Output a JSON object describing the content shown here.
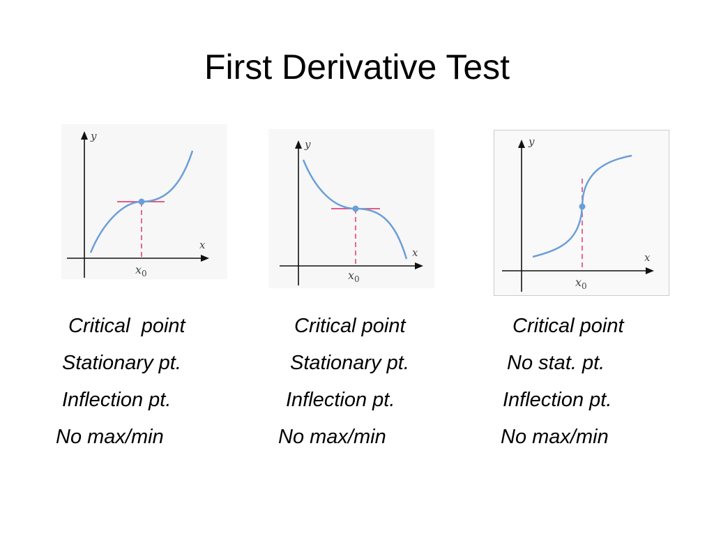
{
  "title": "First Derivative Test",
  "graphs": [
    {
      "axis_x": "x",
      "axis_y": "y",
      "x0_main": "x",
      "x0_sub": "0",
      "lines": [
        "Critical  point",
        "Stationary pt.",
        "Inflection pt.",
        "No max/min"
      ]
    },
    {
      "axis_x": "x",
      "axis_y": "y",
      "x0_main": "x",
      "x0_sub": "0",
      "lines": [
        "Critical point",
        "Stationary pt.",
        "Inflection pt.",
        "No max/min"
      ]
    },
    {
      "axis_x": "x",
      "axis_y": "y",
      "x0_main": "x",
      "x0_sub": "0",
      "lines": [
        "Critical point",
        "No stat. pt.",
        "Inflection pt.",
        "No max/min"
      ]
    }
  ],
  "colors": {
    "curve": "#6a9fd8",
    "tangent": "#e0457a",
    "dashed": "#e0457a",
    "axis": "#111111",
    "panel": "#f7f7f7"
  }
}
